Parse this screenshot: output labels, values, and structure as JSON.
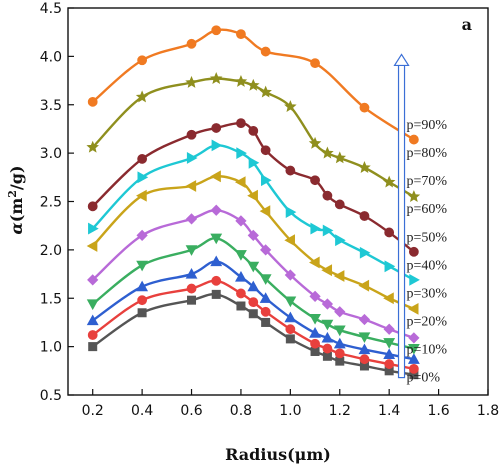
{
  "chart_data": {
    "type": "line",
    "panel_label": "a",
    "xlabel": "Radius(μm)",
    "ylabel_main": "α",
    "ylabel_unit": "(m",
    "ylabel_sup": "2",
    "ylabel_tail": "/g)",
    "xlim": [
      0.1,
      1.8
    ],
    "ylim": [
      0.5,
      4.5
    ],
    "xticks": [
      0.2,
      0.4,
      0.6,
      0.8,
      1.0,
      1.2,
      1.4,
      1.6,
      1.8
    ],
    "yticks": [
      0.5,
      1.0,
      1.5,
      2.0,
      2.5,
      3.0,
      3.5,
      4.0,
      4.5
    ],
    "xtick_labels": [
      "0.2",
      "0.4",
      "0.6",
      "0.8",
      "1.0",
      "1.2",
      "1.4",
      "1.6",
      "1.8"
    ],
    "ytick_labels": [
      "0.5",
      "1.0",
      "1.5",
      "2.0",
      "2.5",
      "3.0",
      "3.5",
      "4.0",
      "4.5"
    ],
    "arrow_color": "#3b6fd6",
    "series": [
      {
        "name": "p=0%",
        "color": "#555555",
        "marker": "square",
        "x": [
          0.2,
          0.4,
          0.6,
          0.7,
          0.8,
          0.85,
          0.9,
          1.0,
          1.1,
          1.15,
          1.2,
          1.3,
          1.4,
          1.5
        ],
        "y": [
          1.0,
          1.35,
          1.48,
          1.54,
          1.42,
          1.34,
          1.25,
          1.08,
          0.95,
          0.9,
          0.85,
          0.8,
          0.75,
          0.71
        ]
      },
      {
        "name": "p=10%",
        "color": "#e8403d",
        "marker": "circle",
        "x": [
          0.2,
          0.4,
          0.6,
          0.7,
          0.8,
          0.85,
          0.9,
          1.0,
          1.1,
          1.15,
          1.2,
          1.3,
          1.4,
          1.5
        ],
        "y": [
          1.12,
          1.48,
          1.6,
          1.68,
          1.55,
          1.46,
          1.36,
          1.18,
          1.03,
          0.98,
          0.93,
          0.87,
          0.82,
          0.77
        ]
      },
      {
        "name": "p=20%",
        "color": "#2e5fd0",
        "marker": "triangle-up",
        "x": [
          0.2,
          0.4,
          0.6,
          0.7,
          0.8,
          0.85,
          0.9,
          1.0,
          1.1,
          1.15,
          1.2,
          1.3,
          1.4,
          1.5
        ],
        "y": [
          1.27,
          1.62,
          1.75,
          1.88,
          1.72,
          1.62,
          1.5,
          1.3,
          1.14,
          1.09,
          1.03,
          0.97,
          0.92,
          0.87
        ]
      },
      {
        "name": "p=30%",
        "color": "#3aae60",
        "marker": "triangle-down",
        "x": [
          0.2,
          0.4,
          0.6,
          0.7,
          0.8,
          0.85,
          0.9,
          1.0,
          1.1,
          1.15,
          1.2,
          1.3,
          1.4,
          1.5
        ],
        "y": [
          1.44,
          1.84,
          2.0,
          2.12,
          1.95,
          1.83,
          1.7,
          1.47,
          1.29,
          1.23,
          1.17,
          1.1,
          1.04,
          0.98
        ]
      },
      {
        "name": "p=40%",
        "color": "#b86ad8",
        "marker": "diamond",
        "x": [
          0.2,
          0.4,
          0.6,
          0.7,
          0.8,
          0.85,
          0.9,
          1.0,
          1.1,
          1.15,
          1.2,
          1.3,
          1.4,
          1.5
        ],
        "y": [
          1.69,
          2.15,
          2.32,
          2.41,
          2.3,
          2.15,
          2.0,
          1.74,
          1.52,
          1.44,
          1.36,
          1.28,
          1.18,
          1.09
        ]
      },
      {
        "name": "p=50%",
        "color": "#c9a41a",
        "marker": "triangle-left",
        "x": [
          0.2,
          0.4,
          0.6,
          0.7,
          0.8,
          0.85,
          0.9,
          1.0,
          1.1,
          1.15,
          1.2,
          1.3,
          1.4,
          1.5
        ],
        "y": [
          2.04,
          2.56,
          2.66,
          2.76,
          2.7,
          2.56,
          2.4,
          2.1,
          1.87,
          1.79,
          1.73,
          1.63,
          1.5,
          1.39
        ]
      },
      {
        "name": "p=60%",
        "color": "#1ec8d4",
        "marker": "triangle-right",
        "x": [
          0.2,
          0.4,
          0.6,
          0.7,
          0.8,
          0.85,
          0.9,
          1.0,
          1.1,
          1.15,
          1.2,
          1.3,
          1.4,
          1.5
        ],
        "y": [
          2.22,
          2.75,
          2.95,
          3.08,
          3.0,
          2.9,
          2.72,
          2.39,
          2.22,
          2.2,
          2.1,
          1.97,
          1.83,
          1.69
        ]
      },
      {
        "name": "p=70%",
        "color": "#8a2a2f",
        "marker": "circle",
        "x": [
          0.2,
          0.4,
          0.6,
          0.7,
          0.8,
          0.85,
          0.9,
          1.0,
          1.1,
          1.15,
          1.2,
          1.3,
          1.4,
          1.5
        ],
        "y": [
          2.45,
          2.94,
          3.19,
          3.26,
          3.31,
          3.23,
          3.03,
          2.82,
          2.72,
          2.56,
          2.47,
          2.35,
          2.18,
          1.98
        ]
      },
      {
        "name": "p=80%",
        "color": "#8f8f1e",
        "marker": "star",
        "x": [
          0.2,
          0.4,
          0.6,
          0.7,
          0.8,
          0.85,
          0.9,
          1.0,
          1.1,
          1.15,
          1.2,
          1.3,
          1.4,
          1.5
        ],
        "y": [
          3.06,
          3.58,
          3.73,
          3.77,
          3.74,
          3.7,
          3.63,
          3.48,
          3.1,
          3.0,
          2.95,
          2.85,
          2.7,
          2.55
        ]
      },
      {
        "name": "p=90%",
        "color": "#f07a22",
        "marker": "circle",
        "x": [
          0.2,
          0.4,
          0.6,
          0.7,
          0.8,
          0.9,
          1.1,
          1.3,
          1.5
        ],
        "y": [
          3.53,
          3.96,
          4.13,
          4.27,
          4.23,
          4.05,
          3.93,
          3.47,
          3.14
        ]
      }
    ],
    "legend_placement": "right-inside (labels along arrow)"
  }
}
